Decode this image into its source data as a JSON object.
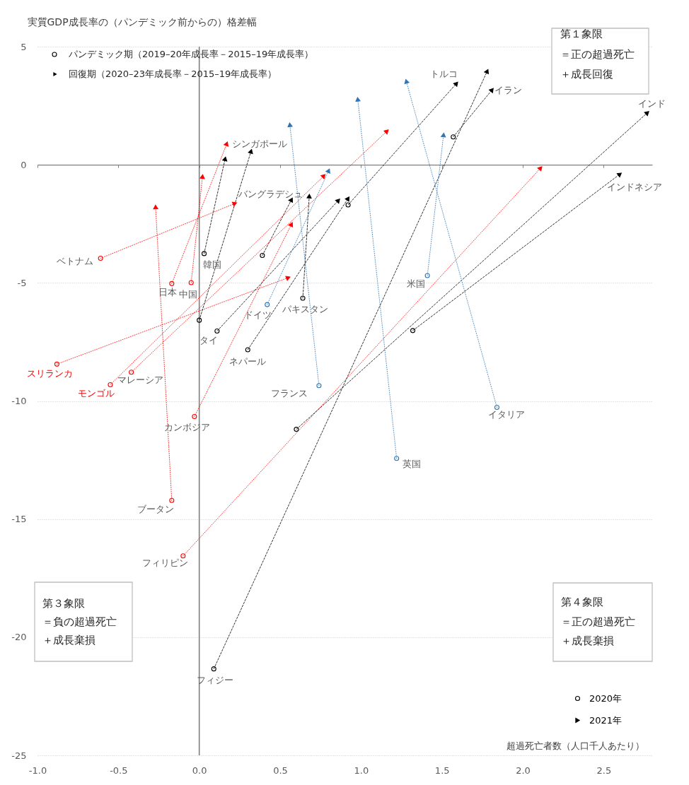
{
  "chart_data": {
    "type": "line",
    "xlabel": "超過死亡者数（人口千人あたり）",
    "ylabel": "実質GDP成長率の（パンデミック前からの）格差幅",
    "xlim": [
      -1,
      2.8
    ],
    "xticks": [
      {
        "value": -1,
        "label": "-1.0"
      },
      -0.5,
      {
        "value": 0,
        "label": "0.0"
      },
      0.5,
      {
        "value": 1,
        "label": "1.0"
      },
      1.5,
      {
        "value": 2,
        "label": "2.0"
      },
      2.5
    ],
    "ylim": [
      -25,
      5
    ],
    "yticks": [
      -25,
      -20,
      -15,
      -10,
      -5,
      0,
      5
    ],
    "grid": "y",
    "legend": "bottom right",
    "ref_lines": [
      {
        "axis": "x",
        "value": 0,
        "color": "#7f7f7f"
      }
    ],
    "annotations": [
      "パンデミック期（2019–20年成長率－2015–19年成長率）",
      "回復期（2020–23年成長率－2015–19年成長率）",
      "第１象限",
      "＝正の超過死亡",
      "＋成長回復",
      "第３象限",
      "＝負の超過死亡",
      "＋成長棄損",
      "第４象限",
      "＝正の超過死亡",
      "＋成長棄損"
    ],
    "series": [
      {
        "name": "ベトナム",
        "color": "#ff0000",
        "line_style": "dotted",
        "x": [
          -0.61,
          0.22
        ],
        "values": [
          -3.96,
          -1.64
        ]
      },
      {
        "name": "日本",
        "color": "#ff0000",
        "line_style": "dotted",
        "x": [
          -0.17,
          0.17
        ],
        "values": [
          -5.03,
          0.89
        ]
      },
      {
        "name": "中国",
        "color": "#ff0000",
        "line_style": "dotted",
        "x": [
          -0.05,
          0.02
        ],
        "values": [
          -4.99,
          -0.5
        ]
      },
      {
        "name": "スリランカ",
        "color": "#ff0000",
        "line_style": "dotted",
        "x": [
          -0.88,
          0.55
        ],
        "values": [
          -8.44,
          -4.78
        ]
      },
      {
        "name": "マレーシア",
        "color": "#ff0000",
        "line_style": "dotted",
        "x": [
          -0.42,
          1.16
        ],
        "values": [
          -8.78,
          1.42
        ]
      },
      {
        "name": "モンゴル",
        "color": "#ff0000",
        "line_style": "dotted",
        "x": [
          -0.55,
          0.77
        ],
        "values": [
          -9.31,
          -0.47
        ]
      },
      {
        "name": "カンボジア",
        "color": "#ff0000",
        "line_style": "dotted",
        "x": [
          -0.03,
          0.57
        ],
        "values": [
          -10.66,
          -2.52
        ]
      },
      {
        "name": "ブータン",
        "color": "#ff0000",
        "line_style": "dotted",
        "x": [
          -0.17,
          -0.27
        ],
        "values": [
          -14.21,
          -1.79
        ]
      },
      {
        "name": "フィリピン",
        "color": "#ff0000",
        "line_style": "dotted",
        "x": [
          -0.1,
          2.11
        ],
        "values": [
          -16.56,
          -0.14
        ]
      },
      {
        "name": "韓国",
        "color": "#000000",
        "line_style": "dashed",
        "x": [
          0.03,
          0.16
        ],
        "values": [
          -3.76,
          0.25
        ]
      },
      {
        "name": "シンガポール",
        "color": "#000000",
        "line_style": "dashed",
        "x": [
          0,
          0.32
        ],
        "values": [
          -6.58,
          0.57
        ]
      },
      {
        "name": "バングラデシュ",
        "color": "#000000",
        "line_style": "dashed",
        "x": [
          0.39,
          0.57
        ],
        "values": [
          -3.84,
          -1.48
        ]
      },
      {
        "name": "パキスタン",
        "color": "#000000",
        "line_style": "dashed",
        "x": [
          0.64,
          0.68
        ],
        "values": [
          -5.65,
          -1.33
        ]
      },
      {
        "name": "タイ",
        "color": "#000000",
        "line_style": "dashed",
        "x": [
          0.11,
          0.86
        ],
        "values": [
          -7.04,
          -1.51
        ]
      },
      {
        "name": "ネパール",
        "color": "#000000",
        "line_style": "dashed",
        "x": [
          0.3,
          0.92
        ],
        "values": [
          -7.83,
          -1.43
        ]
      },
      {
        "name": "トルコ",
        "color": "#000000",
        "line_style": "dashed",
        "x": [
          0.92,
          1.59
        ],
        "values": [
          -1.7,
          3.44
        ]
      },
      {
        "name": "イラン",
        "color": "#000000",
        "line_style": "dashed",
        "x": [
          1.57,
          1.81
        ],
        "values": [
          1.18,
          3.17
        ]
      },
      {
        "name": "インド",
        "color": "#000000",
        "line_style": "dashed",
        "x": [
          0.6,
          2.77
        ],
        "values": [
          -11.2,
          2.2
        ]
      },
      {
        "name": "インドネシア",
        "color": "#000000",
        "line_style": "dashed",
        "x": [
          1.32,
          2.6
        ],
        "values": [
          -7.02,
          -0.4
        ]
      },
      {
        "name": "フィジー",
        "color": "#000000",
        "line_style": "dashed",
        "x": [
          0.09,
          1.78
        ],
        "values": [
          -21.34,
          3.96
        ]
      },
      {
        "name": "ドイツ",
        "color": "#2e75b6",
        "line_style": "dotted",
        "x": [
          0.42,
          0.8
        ],
        "values": [
          -5.92,
          -0.25
        ]
      },
      {
        "name": "フランス",
        "color": "#2e75b6",
        "line_style": "dotted",
        "x": [
          0.74,
          0.56
        ],
        "values": [
          -9.35,
          1.69
        ]
      },
      {
        "name": "英国",
        "color": "#2e75b6",
        "line_style": "dotted",
        "x": [
          1.22,
          0.98
        ],
        "values": [
          -12.43,
          2.77
        ]
      },
      {
        "name": "イタリア",
        "color": "#2e75b6",
        "line_style": "dotted",
        "x": [
          1.84,
          1.28
        ],
        "values": [
          -10.27,
          3.53
        ]
      },
      {
        "name": "米国",
        "color": "#2e75b6",
        "line_style": "dotted",
        "x": [
          1.41,
          1.51
        ],
        "values": [
          -4.69,
          1.26
        ]
      },
      {
        "name": "2020年",
        "type": "scatter",
        "marker": "circle",
        "x": [
          -0.61,
          -0.17,
          -0.05,
          -0.88,
          -0.42,
          -0.55,
          -0.03,
          -0.17,
          -0.1,
          0.03,
          0,
          0.39,
          0.64,
          0.11,
          0.3,
          0.92,
          1.57,
          0.6,
          1.32,
          0.09,
          0.42,
          0.74,
          1.22,
          1.84,
          1.41
        ],
        "values": [
          -3.96,
          -5.03,
          -4.99,
          -8.44,
          -8.78,
          -9.31,
          -10.66,
          -14.21,
          -16.56,
          -3.76,
          -6.58,
          -3.84,
          -5.65,
          -7.04,
          -7.83,
          -1.7,
          1.18,
          -11.2,
          -7.02,
          -21.34,
          -5.92,
          -9.35,
          -12.43,
          -10.27,
          -4.69
        ],
        "colors": [
          "#ff0000",
          "#ff0000",
          "#ff0000",
          "#ff0000",
          "#ff0000",
          "#ff0000",
          "#ff0000",
          "#ff0000",
          "#ff0000",
          "#000000",
          "#000000",
          "#000000",
          "#000000",
          "#000000",
          "#000000",
          "#000000",
          "#000000",
          "#000000",
          "#000000",
          "#000000",
          "#2e75b6",
          "#2e75b6",
          "#2e75b6",
          "#2e75b6",
          "#2e75b6"
        ]
      },
      {
        "name": "2021年",
        "type": "scatter",
        "marker": "triangle",
        "x": [
          0.22,
          0.17,
          0.02,
          0.55,
          1.16,
          0.77,
          0.57,
          -0.27,
          2.11,
          0.16,
          0.32,
          0.57,
          0.68,
          0.86,
          0.92,
          1.59,
          1.81,
          2.77,
          2.6,
          1.78,
          0.8,
          0.56,
          0.98,
          1.28,
          1.51
        ],
        "values": [
          -1.64,
          0.89,
          -0.5,
          -4.78,
          1.42,
          -0.47,
          -2.52,
          -1.79,
          -0.14,
          0.25,
          0.57,
          -1.48,
          -1.33,
          -1.51,
          -1.43,
          3.44,
          3.17,
          2.2,
          -0.4,
          3.96,
          -0.25,
          1.69,
          2.77,
          3.53,
          1.26
        ],
        "colors": [
          "#ff0000",
          "#ff0000",
          "#ff0000",
          "#ff0000",
          "#ff0000",
          "#ff0000",
          "#ff0000",
          "#ff0000",
          "#ff0000",
          "#000000",
          "#000000",
          "#000000",
          "#000000",
          "#000000",
          "#000000",
          "#000000",
          "#000000",
          "#000000",
          "#000000",
          "#000000",
          "#2e75b6",
          "#2e75b6",
          "#2e75b6",
          "#2e75b6",
          "#2e75b6"
        ]
      }
    ]
  }
}
